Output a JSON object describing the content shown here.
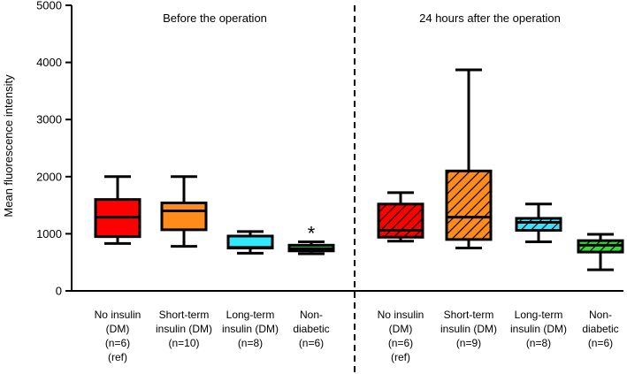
{
  "chart_data": {
    "type": "box",
    "ylabel": "Mean fluorescence intensity",
    "ylim": [
      0,
      5000
    ],
    "yticks": [
      0,
      1000,
      2000,
      3000,
      4000,
      5000
    ],
    "grid": false,
    "panels": [
      {
        "title": "Before the operation",
        "groups": [
          {
            "label": [
              "No insulin",
              "(DM)",
              "(n=6)",
              "(ref)"
            ],
            "min": 830,
            "q1": 950,
            "median": 1290,
            "q3": 1600,
            "max": 2000,
            "color": "#ff0000",
            "hatched": false,
            "annotation": ""
          },
          {
            "label": [
              "Short-term",
              "insulin (DM)",
              "(n=10)"
            ],
            "min": 780,
            "q1": 1070,
            "median": 1400,
            "q3": 1540,
            "max": 2000,
            "color": "#ff8c1a",
            "hatched": false,
            "annotation": ""
          },
          {
            "label": [
              "Long-term",
              "insulin (DM)",
              "(n=8)"
            ],
            "min": 660,
            "q1": 750,
            "median": 760,
            "q3": 960,
            "max": 1040,
            "color": "#33e6ff",
            "hatched": false,
            "annotation": ""
          },
          {
            "label": [
              "Non-",
              "diabetic",
              "(n=6)"
            ],
            "min": 650,
            "q1": 700,
            "median": 740,
            "q3": 800,
            "max": 860,
            "color": "#33dd33",
            "hatched": false,
            "annotation": "*"
          }
        ]
      },
      {
        "title": "24 hours after the operation",
        "groups": [
          {
            "label": [
              "No insulin",
              "(DM)",
              "(n=6)",
              "(ref)"
            ],
            "min": 870,
            "q1": 940,
            "median": 1060,
            "q3": 1520,
            "max": 1720,
            "color": "#ff0000",
            "hatched": true,
            "annotation": ""
          },
          {
            "label": [
              "Short-term",
              "insulin (DM)",
              "(n=9)"
            ],
            "min": 750,
            "q1": 900,
            "median": 1290,
            "q3": 2100,
            "max": 3870,
            "color": "#ff8c1a",
            "hatched": true,
            "annotation": ""
          },
          {
            "label": [
              "Long-term",
              "insulin (DM)",
              "(n=8)"
            ],
            "min": 860,
            "q1": 1060,
            "median": 1200,
            "q3": 1270,
            "max": 1520,
            "color": "#33e6ff",
            "hatched": true,
            "annotation": ""
          },
          {
            "label": [
              "Non-",
              "diabetic",
              "(n=6)"
            ],
            "min": 370,
            "q1": 680,
            "median": 800,
            "q3": 880,
            "max": 990,
            "color": "#33dd33",
            "hatched": true,
            "annotation": ""
          }
        ]
      }
    ]
  }
}
